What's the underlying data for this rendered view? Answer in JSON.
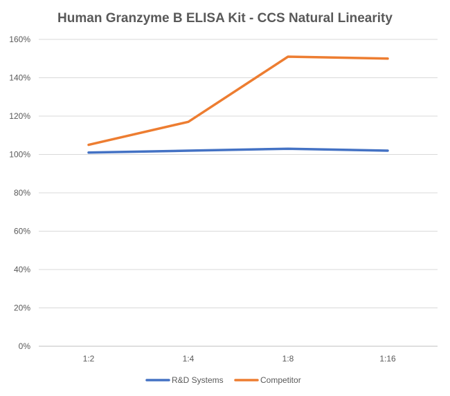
{
  "chart_data": {
    "type": "line",
    "title": "Human Granzyme B ELISA Kit - CCS Natural Linearity",
    "xlabel": "",
    "ylabel": "",
    "categories": [
      "1:2",
      "1:4",
      "1:8",
      "1:16"
    ],
    "y_ticks": [
      "0%",
      "20%",
      "40%",
      "60%",
      "80%",
      "100%",
      "120%",
      "140%",
      "160%"
    ],
    "ylim": [
      0,
      160
    ],
    "y_unit": "%",
    "grid": true,
    "legend_position": "bottom",
    "series": [
      {
        "name": "R&D Systems",
        "color": "#4472c4",
        "values": [
          101,
          102,
          103,
          102
        ]
      },
      {
        "name": "Competitor",
        "color": "#ed7d31",
        "values": [
          105,
          117,
          151,
          150
        ]
      }
    ]
  }
}
